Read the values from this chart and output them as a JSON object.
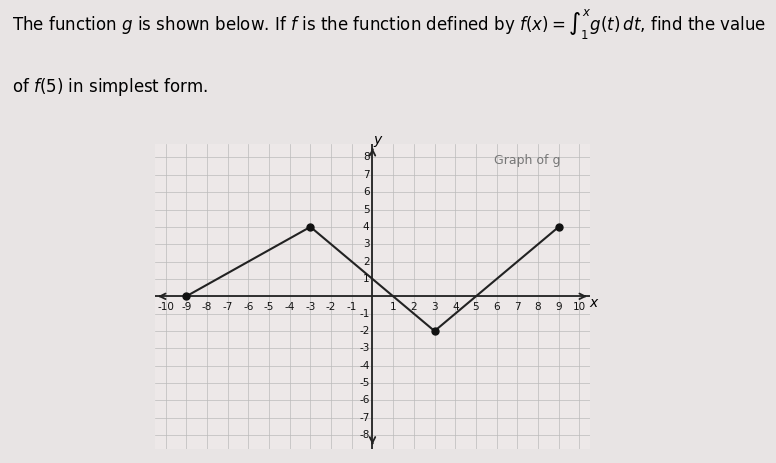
{
  "graph_label": "Graph of g",
  "graph_points": [
    [
      -9,
      0
    ],
    [
      -3,
      4
    ],
    [
      1,
      0
    ],
    [
      3,
      -2
    ],
    [
      9,
      4
    ]
  ],
  "dot_points": [
    [
      -9,
      0
    ],
    [
      -3,
      4
    ],
    [
      3,
      -2
    ],
    [
      9,
      4
    ]
  ],
  "xlim": [
    -10.5,
    10.5
  ],
  "ylim": [
    -8.8,
    8.8
  ],
  "line_color": "#222222",
  "dot_color": "#111111",
  "grid_color": "#bbbbbb",
  "grid_color_light": "#dddddd",
  "axis_color": "#222222",
  "graph_bg_color": "#ede8e8",
  "fig_bg_color": "#e8e4e4",
  "tick_fontsize": 7.5,
  "axis_label_fontsize": 10,
  "graph_label_fontsize": 9,
  "title_line1": "The function $g$ is shown below. If $f$ is the function defined by $f(x)=\\int_1^x g(t)\\,dt$, find the value",
  "title_line2": "of $f(5)$ in simplest form.",
  "title_fontsize": 12
}
